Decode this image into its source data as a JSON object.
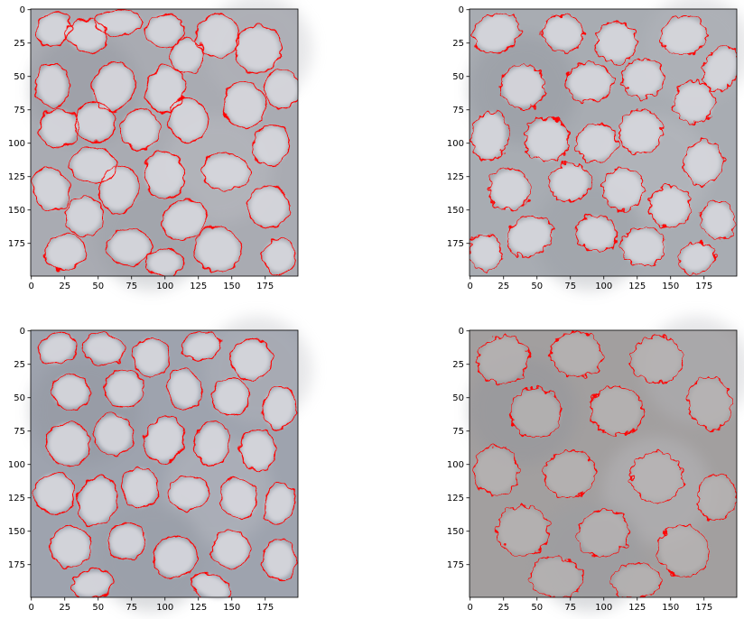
{
  "panels": [
    {
      "id": "top-left",
      "x_ticks": [
        "0",
        "25",
        "50",
        "75",
        "100",
        "125",
        "150",
        "175"
      ],
      "y_ticks": [
        "0",
        "25",
        "50",
        "75",
        "100",
        "125",
        "150",
        "175"
      ],
      "tone": "#a9abb2",
      "stones": [
        {
          "cx": 17,
          "cy": 15,
          "rx": 12,
          "ry": 11
        },
        {
          "cx": 42,
          "cy": 20,
          "rx": 14,
          "ry": 11
        },
        {
          "cx": 66,
          "cy": 10,
          "rx": 16,
          "ry": 8
        },
        {
          "cx": 100,
          "cy": 16,
          "rx": 13,
          "ry": 11
        },
        {
          "cx": 117,
          "cy": 35,
          "rx": 11,
          "ry": 12
        },
        {
          "cx": 140,
          "cy": 20,
          "rx": 14,
          "ry": 15
        },
        {
          "cx": 170,
          "cy": 30,
          "rx": 16,
          "ry": 16
        },
        {
          "cx": 188,
          "cy": 60,
          "rx": 12,
          "ry": 13
        },
        {
          "cx": 62,
          "cy": 58,
          "rx": 14,
          "ry": 17
        },
        {
          "cx": 101,
          "cy": 60,
          "rx": 13,
          "ry": 16
        },
        {
          "cx": 16,
          "cy": 57,
          "rx": 11,
          "ry": 15
        },
        {
          "cx": 21,
          "cy": 89,
          "rx": 13,
          "ry": 13
        },
        {
          "cx": 48,
          "cy": 85,
          "rx": 14,
          "ry": 13
        },
        {
          "cx": 82,
          "cy": 90,
          "rx": 13,
          "ry": 14
        },
        {
          "cx": 118,
          "cy": 83,
          "rx": 13,
          "ry": 15
        },
        {
          "cx": 160,
          "cy": 72,
          "rx": 14,
          "ry": 16
        },
        {
          "cx": 180,
          "cy": 102,
          "rx": 12,
          "ry": 14
        },
        {
          "cx": 47,
          "cy": 117,
          "rx": 16,
          "ry": 12
        },
        {
          "cx": 100,
          "cy": 124,
          "rx": 14,
          "ry": 16
        },
        {
          "cx": 15,
          "cy": 135,
          "rx": 12,
          "ry": 15
        },
        {
          "cx": 66,
          "cy": 135,
          "rx": 13,
          "ry": 16
        },
        {
          "cx": 146,
          "cy": 122,
          "rx": 17,
          "ry": 12
        },
        {
          "cx": 178,
          "cy": 148,
          "rx": 14,
          "ry": 14
        },
        {
          "cx": 115,
          "cy": 158,
          "rx": 16,
          "ry": 13
        },
        {
          "cx": 40,
          "cy": 155,
          "rx": 13,
          "ry": 13
        },
        {
          "cx": 74,
          "cy": 178,
          "rx": 15,
          "ry": 12
        },
        {
          "cx": 26,
          "cy": 182,
          "rx": 14,
          "ry": 12
        },
        {
          "cx": 140,
          "cy": 180,
          "rx": 16,
          "ry": 15
        },
        {
          "cx": 186,
          "cy": 185,
          "rx": 11,
          "ry": 12
        },
        {
          "cx": 100,
          "cy": 190,
          "rx": 12,
          "ry": 9
        }
      ]
    },
    {
      "id": "top-right",
      "x_ticks": [
        "0",
        "25",
        "50",
        "75",
        "100",
        "125",
        "150",
        "175"
      ],
      "y_ticks": [
        "0",
        "25",
        "50",
        "75",
        "100",
        "125",
        "150",
        "175"
      ],
      "tone": "#a8acb2",
      "stones": [
        {
          "cx": 20,
          "cy": 18,
          "rx": 16,
          "ry": 13
        },
        {
          "cx": 70,
          "cy": 18,
          "rx": 14,
          "ry": 12
        },
        {
          "cx": 110,
          "cy": 25,
          "rx": 14,
          "ry": 14
        },
        {
          "cx": 160,
          "cy": 20,
          "rx": 16,
          "ry": 13
        },
        {
          "cx": 188,
          "cy": 45,
          "rx": 11,
          "ry": 16
        },
        {
          "cx": 40,
          "cy": 58,
          "rx": 15,
          "ry": 15
        },
        {
          "cx": 90,
          "cy": 55,
          "rx": 16,
          "ry": 13
        },
        {
          "cx": 130,
          "cy": 52,
          "rx": 14,
          "ry": 13
        },
        {
          "cx": 168,
          "cy": 70,
          "rx": 14,
          "ry": 14
        },
        {
          "cx": 15,
          "cy": 95,
          "rx": 12,
          "ry": 17
        },
        {
          "cx": 58,
          "cy": 98,
          "rx": 15,
          "ry": 15
        },
        {
          "cx": 95,
          "cy": 100,
          "rx": 14,
          "ry": 13
        },
        {
          "cx": 128,
          "cy": 92,
          "rx": 15,
          "ry": 15
        },
        {
          "cx": 175,
          "cy": 115,
          "rx": 13,
          "ry": 15
        },
        {
          "cx": 30,
          "cy": 135,
          "rx": 14,
          "ry": 14
        },
        {
          "cx": 75,
          "cy": 130,
          "rx": 14,
          "ry": 13
        },
        {
          "cx": 115,
          "cy": 135,
          "rx": 14,
          "ry": 14
        },
        {
          "cx": 150,
          "cy": 148,
          "rx": 14,
          "ry": 14
        },
        {
          "cx": 186,
          "cy": 158,
          "rx": 11,
          "ry": 13
        },
        {
          "cx": 45,
          "cy": 170,
          "rx": 16,
          "ry": 13
        },
        {
          "cx": 95,
          "cy": 168,
          "rx": 14,
          "ry": 12
        },
        {
          "cx": 130,
          "cy": 178,
          "rx": 15,
          "ry": 13
        },
        {
          "cx": 12,
          "cy": 182,
          "rx": 11,
          "ry": 12
        },
        {
          "cx": 170,
          "cy": 186,
          "rx": 12,
          "ry": 10
        }
      ]
    },
    {
      "id": "bottom-left",
      "x_ticks": [
        "0",
        "25",
        "50",
        "75",
        "100",
        "125",
        "150",
        "175"
      ],
      "y_ticks": [
        "0",
        "25",
        "50",
        "75",
        "100",
        "125",
        "150",
        "175"
      ],
      "tone": "#9ea3ae",
      "stones": [
        {
          "cx": 20,
          "cy": 14,
          "rx": 13,
          "ry": 10
        },
        {
          "cx": 55,
          "cy": 14,
          "rx": 14,
          "ry": 10
        },
        {
          "cx": 90,
          "cy": 20,
          "rx": 12,
          "ry": 13
        },
        {
          "cx": 128,
          "cy": 12,
          "rx": 13,
          "ry": 9
        },
        {
          "cx": 165,
          "cy": 22,
          "rx": 14,
          "ry": 14
        },
        {
          "cx": 30,
          "cy": 46,
          "rx": 13,
          "ry": 12
        },
        {
          "cx": 70,
          "cy": 44,
          "rx": 13,
          "ry": 13
        },
        {
          "cx": 115,
          "cy": 44,
          "rx": 11,
          "ry": 14
        },
        {
          "cx": 150,
          "cy": 50,
          "rx": 12,
          "ry": 13
        },
        {
          "cx": 186,
          "cy": 58,
          "rx": 11,
          "ry": 15
        },
        {
          "cx": 28,
          "cy": 85,
          "rx": 15,
          "ry": 15
        },
        {
          "cx": 62,
          "cy": 78,
          "rx": 13,
          "ry": 14
        },
        {
          "cx": 100,
          "cy": 82,
          "rx": 13,
          "ry": 16
        },
        {
          "cx": 136,
          "cy": 85,
          "rx": 11,
          "ry": 15
        },
        {
          "cx": 170,
          "cy": 90,
          "rx": 12,
          "ry": 14
        },
        {
          "cx": 18,
          "cy": 122,
          "rx": 14,
          "ry": 14
        },
        {
          "cx": 50,
          "cy": 128,
          "rx": 13,
          "ry": 17
        },
        {
          "cx": 82,
          "cy": 118,
          "rx": 12,
          "ry": 14
        },
        {
          "cx": 118,
          "cy": 122,
          "rx": 14,
          "ry": 11
        },
        {
          "cx": 156,
          "cy": 126,
          "rx": 12,
          "ry": 14
        },
        {
          "cx": 186,
          "cy": 130,
          "rx": 10,
          "ry": 14
        },
        {
          "cx": 30,
          "cy": 162,
          "rx": 14,
          "ry": 14
        },
        {
          "cx": 72,
          "cy": 158,
          "rx": 13,
          "ry": 12
        },
        {
          "cx": 108,
          "cy": 170,
          "rx": 15,
          "ry": 14
        },
        {
          "cx": 150,
          "cy": 164,
          "rx": 13,
          "ry": 13
        },
        {
          "cx": 186,
          "cy": 172,
          "rx": 11,
          "ry": 14
        },
        {
          "cx": 46,
          "cy": 190,
          "rx": 14,
          "ry": 9
        },
        {
          "cx": 135,
          "cy": 192,
          "rx": 14,
          "ry": 8
        }
      ]
    },
    {
      "id": "bottom-right",
      "x_ticks": [
        "0",
        "25",
        "50",
        "75",
        "100",
        "125",
        "150",
        "175"
      ],
      "y_ticks": [
        "0",
        "25",
        "50",
        "75",
        "100",
        "125",
        "150",
        "175"
      ],
      "tone": "#a29f9f",
      "stones": [
        {
          "cx": 25,
          "cy": 22,
          "rx": 18,
          "ry": 16
        },
        {
          "cx": 80,
          "cy": 18,
          "rx": 18,
          "ry": 15
        },
        {
          "cx": 140,
          "cy": 22,
          "rx": 18,
          "ry": 16
        },
        {
          "cx": 180,
          "cy": 55,
          "rx": 15,
          "ry": 18
        },
        {
          "cx": 50,
          "cy": 62,
          "rx": 18,
          "ry": 17
        },
        {
          "cx": 110,
          "cy": 60,
          "rx": 18,
          "ry": 17
        },
        {
          "cx": 20,
          "cy": 105,
          "rx": 15,
          "ry": 17
        },
        {
          "cx": 75,
          "cy": 108,
          "rx": 18,
          "ry": 16
        },
        {
          "cx": 140,
          "cy": 110,
          "rx": 18,
          "ry": 17
        },
        {
          "cx": 185,
          "cy": 125,
          "rx": 13,
          "ry": 16
        },
        {
          "cx": 40,
          "cy": 150,
          "rx": 18,
          "ry": 17
        },
        {
          "cx": 100,
          "cy": 152,
          "rx": 18,
          "ry": 16
        },
        {
          "cx": 160,
          "cy": 165,
          "rx": 18,
          "ry": 17
        },
        {
          "cx": 65,
          "cy": 185,
          "rx": 18,
          "ry": 14
        },
        {
          "cx": 125,
          "cy": 188,
          "rx": 17,
          "ry": 12
        }
      ]
    }
  ]
}
